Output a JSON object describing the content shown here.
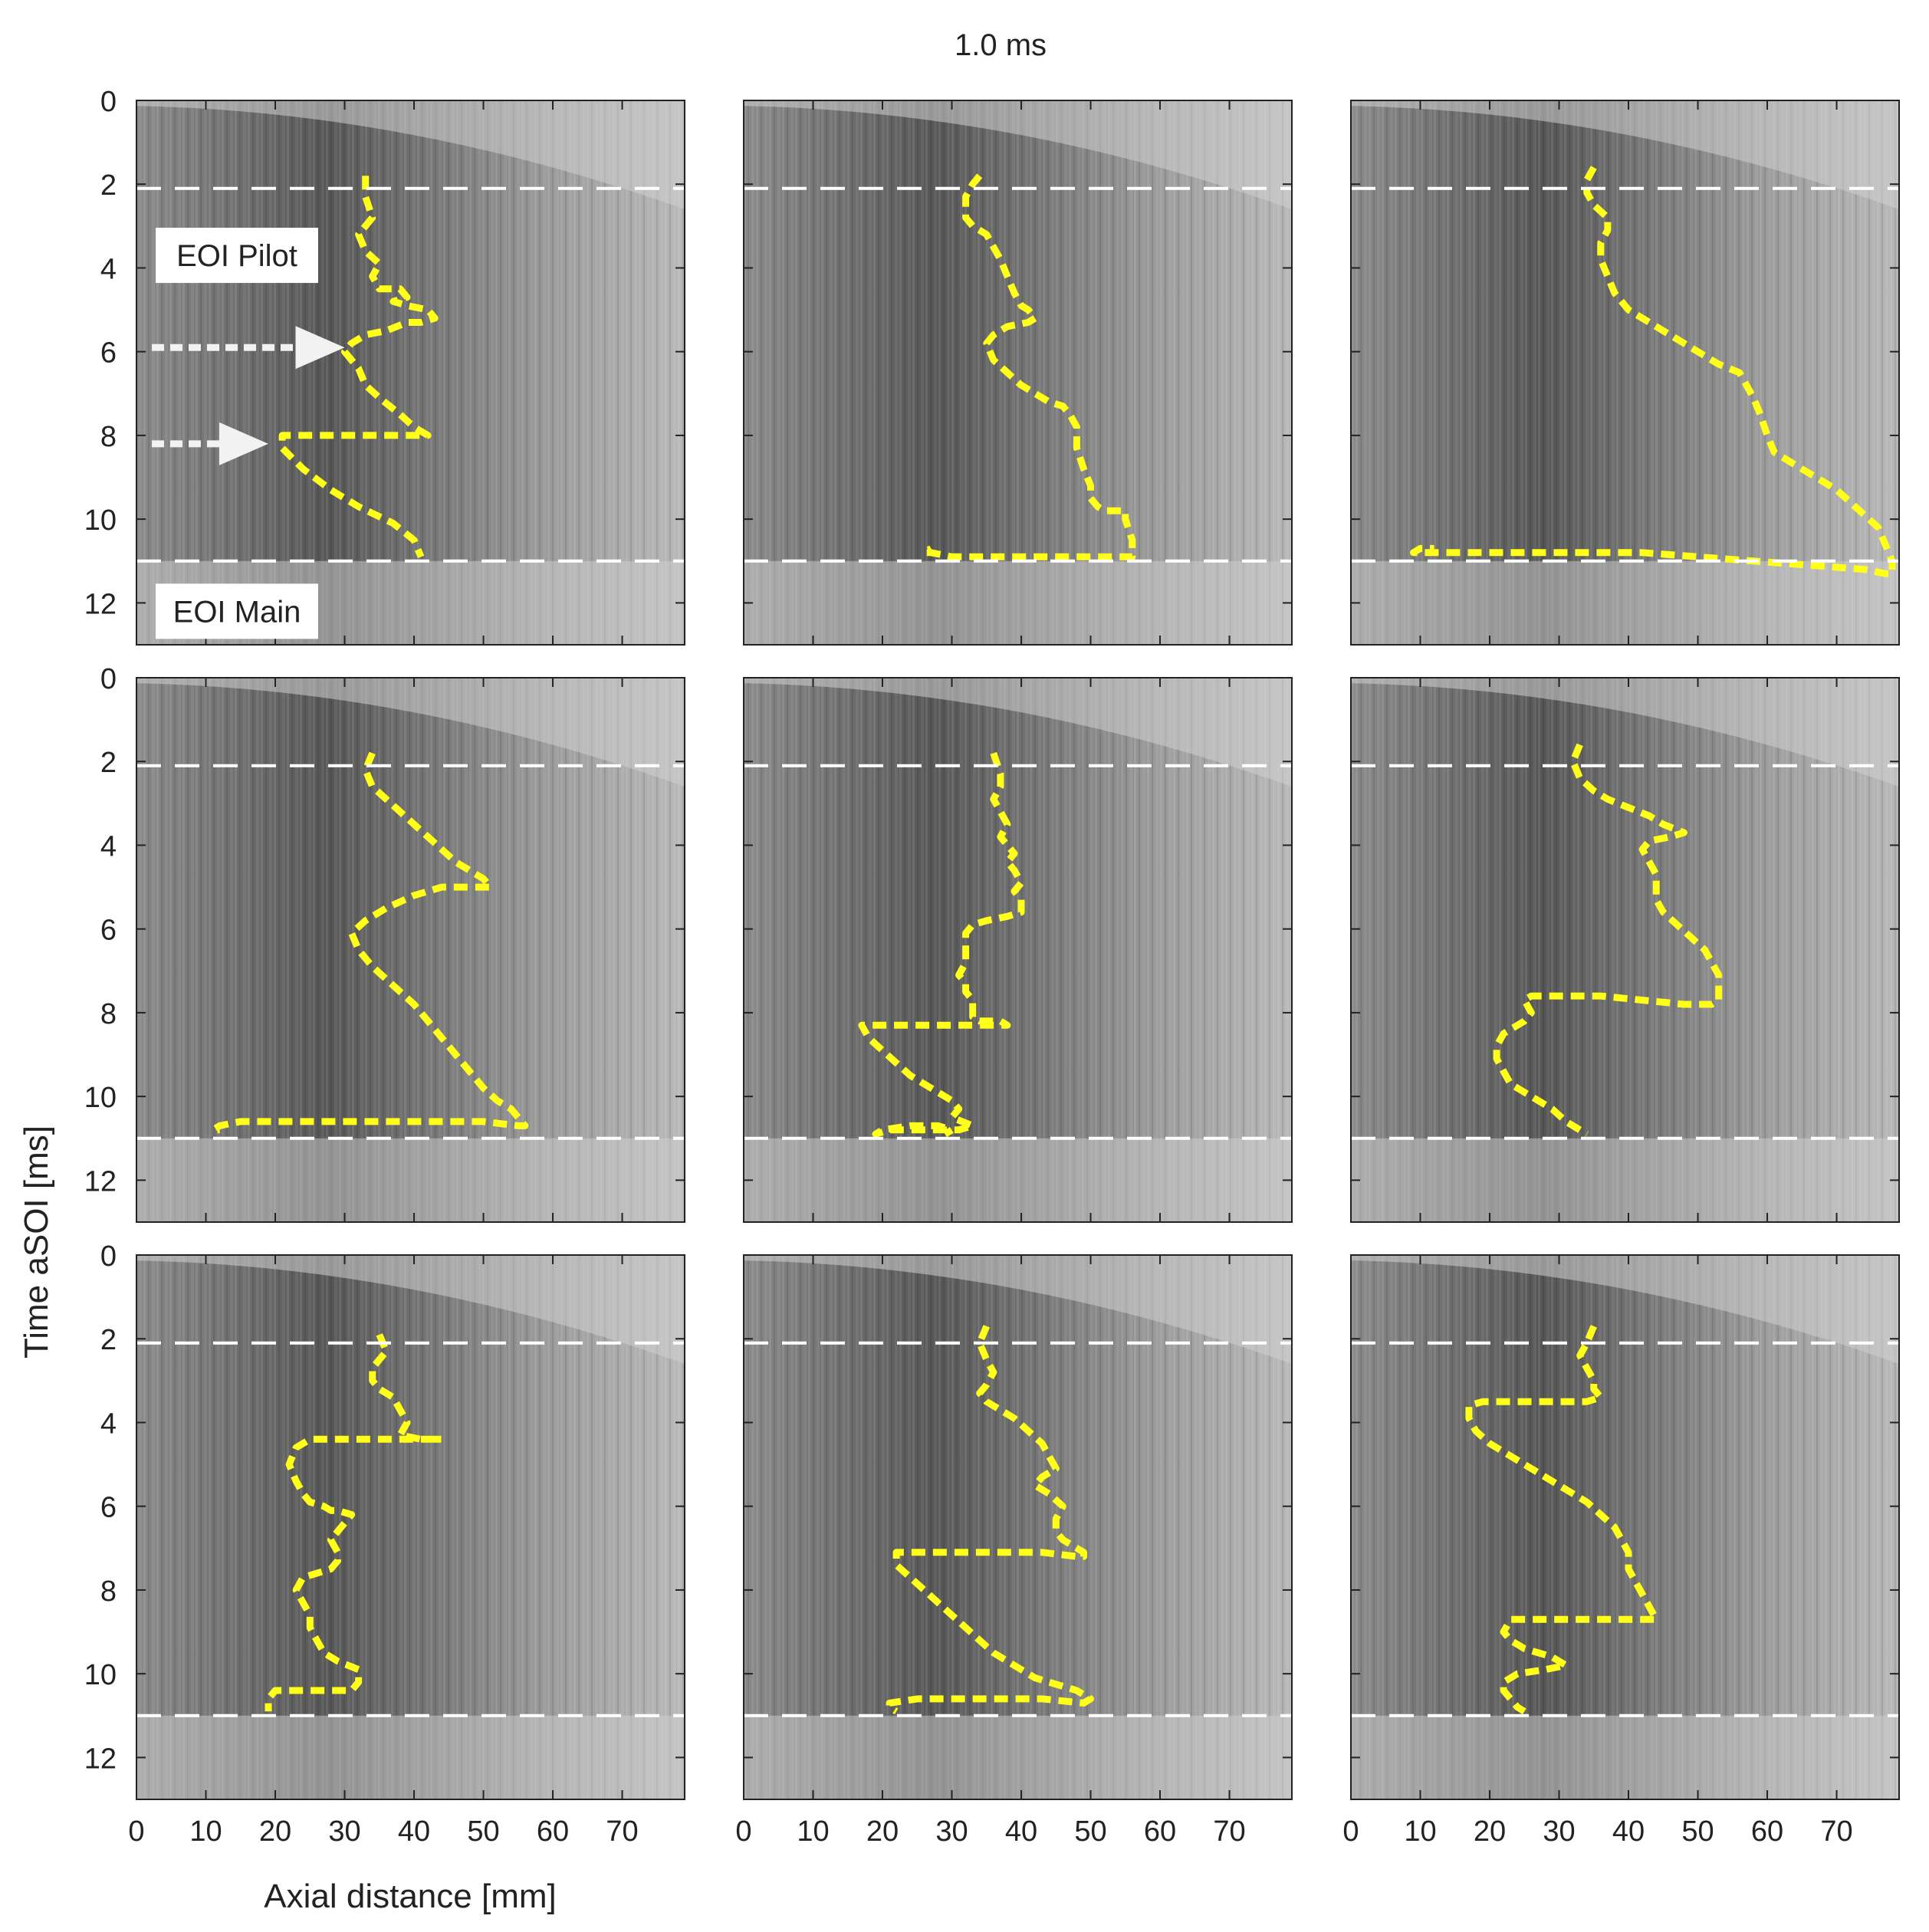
{
  "figure": {
    "title": "1.0 ms",
    "ylabel": "Time aSOI [ms]",
    "xlabel": "Axial distance [mm]"
  },
  "annotations": {
    "eoi_pilot_label": "EOI Pilot",
    "eoi_main_label": "EOI Main",
    "eoi_pilot_time": 2.1,
    "eoi_main_time": 11.0,
    "arrow_times": [
      5.9,
      8.2
    ]
  },
  "axes": {
    "xlim": [
      0,
      79
    ],
    "ylim": [
      13,
      0
    ],
    "xticks": [
      0,
      10,
      20,
      30,
      40,
      50,
      60,
      70
    ],
    "yticks": [
      0,
      2,
      4,
      6,
      8,
      10,
      12
    ]
  },
  "chart_data": [
    {
      "type": "line",
      "panel": "row1-col1",
      "series": [
        {
          "x": [
            33,
            33,
            34,
            32,
            33,
            35,
            34,
            35,
            38,
            39,
            37,
            39,
            42,
            43,
            41,
            39,
            36,
            33,
            31,
            30,
            32,
            33,
            35,
            38,
            40,
            42,
            40,
            36,
            33,
            30,
            27,
            24,
            21,
            21,
            24,
            28,
            32,
            37,
            40,
            41
          ],
          "y": [
            1.8,
            2.3,
            2.8,
            3.2,
            3.6,
            3.9,
            4.2,
            4.5,
            4.5,
            4.7,
            4.8,
            4.9,
            5.0,
            5.2,
            5.3,
            5.3,
            5.5,
            5.6,
            5.8,
            6.0,
            6.4,
            6.8,
            7.1,
            7.5,
            7.8,
            8.0,
            8.0,
            8.0,
            8.0,
            8.0,
            8.0,
            8.0,
            8.0,
            8.3,
            8.8,
            9.3,
            9.7,
            10.1,
            10.5,
            10.9
          ]
        }
      ]
    },
    {
      "type": "line",
      "panel": "row1-col2",
      "series": [
        {
          "x": [
            34,
            33,
            32,
            32,
            33,
            35,
            36,
            37,
            38,
            39,
            40,
            41,
            42,
            41,
            38,
            36,
            35,
            36,
            38,
            40,
            42,
            44,
            46,
            47,
            48,
            48,
            49,
            50,
            50,
            51,
            52,
            53,
            54,
            55,
            55,
            56,
            56,
            55,
            50,
            45,
            40,
            35,
            30,
            27,
            26,
            27
          ],
          "y": [
            1.8,
            2.0,
            2.3,
            2.8,
            3.0,
            3.2,
            3.5,
            3.8,
            4.2,
            4.6,
            4.9,
            5.0,
            5.2,
            5.3,
            5.4,
            5.6,
            5.8,
            6.2,
            6.5,
            6.8,
            7.0,
            7.2,
            7.3,
            7.5,
            7.8,
            8.3,
            8.8,
            9.2,
            9.5,
            9.7,
            9.8,
            9.8,
            9.8,
            9.8,
            10.0,
            10.5,
            10.9,
            10.9,
            10.9,
            10.9,
            10.9,
            10.9,
            10.9,
            10.8,
            10.8,
            10.7
          ]
        }
      ]
    },
    {
      "type": "line",
      "panel": "row1-col3",
      "series": [
        {
          "x": [
            35,
            34,
            34,
            35,
            37,
            37,
            36,
            36,
            37,
            38,
            40,
            43,
            46,
            50,
            53,
            56,
            57,
            58,
            59,
            60,
            61,
            64,
            67,
            70,
            72,
            74,
            76,
            77,
            78,
            78,
            77,
            74,
            66,
            58,
            50,
            42,
            34,
            26,
            18,
            12,
            9,
            10,
            12
          ],
          "y": [
            1.6,
            1.9,
            2.2,
            2.5,
            2.8,
            3.1,
            3.4,
            3.8,
            4.2,
            4.6,
            5.0,
            5.3,
            5.6,
            6.0,
            6.3,
            6.5,
            6.8,
            7.1,
            7.5,
            8.0,
            8.4,
            8.7,
            9.0,
            9.3,
            9.6,
            9.9,
            10.2,
            10.6,
            11.0,
            11.3,
            11.3,
            11.2,
            11.1,
            11.0,
            10.9,
            10.8,
            10.8,
            10.8,
            10.8,
            10.8,
            10.8,
            10.7,
            10.7
          ]
        }
      ]
    },
    {
      "type": "line",
      "panel": "row2-col1",
      "series": [
        {
          "x": [
            34,
            33,
            34,
            36,
            38,
            40,
            42,
            44,
            46,
            48,
            50,
            51,
            48,
            44,
            40,
            36,
            33,
            31,
            32,
            34,
            36,
            38,
            40,
            42,
            44,
            46,
            48,
            50,
            52,
            54,
            55,
            56,
            55,
            50,
            45,
            40,
            35,
            30,
            25,
            20,
            15,
            12,
            11,
            12
          ],
          "y": [
            1.8,
            2.2,
            2.6,
            2.9,
            3.2,
            3.5,
            3.8,
            4.1,
            4.4,
            4.6,
            4.8,
            5.0,
            5.0,
            5.0,
            5.2,
            5.5,
            5.8,
            6.1,
            6.5,
            6.9,
            7.2,
            7.5,
            7.8,
            8.2,
            8.6,
            9.0,
            9.4,
            9.8,
            10.1,
            10.3,
            10.5,
            10.7,
            10.7,
            10.6,
            10.6,
            10.6,
            10.6,
            10.6,
            10.6,
            10.6,
            10.6,
            10.7,
            10.8,
            10.8
          ]
        }
      ]
    },
    {
      "type": "line",
      "panel": "row2-col2",
      "series": [
        {
          "x": [
            36,
            37,
            37,
            36,
            37,
            38,
            37,
            38,
            39,
            38,
            39,
            40,
            39,
            40,
            40,
            38,
            35,
            33,
            32,
            32,
            32,
            31,
            32,
            32,
            33,
            33,
            33,
            34,
            36,
            37,
            38,
            38,
            34,
            28,
            22,
            17,
            18,
            20,
            22,
            24,
            26,
            28,
            30,
            31,
            30,
            33,
            31,
            28,
            24,
            21,
            19,
            20,
            24,
            28,
            30,
            29
          ],
          "y": [
            1.8,
            2.3,
            2.6,
            2.9,
            3.2,
            3.5,
            3.8,
            4.0,
            4.2,
            4.4,
            4.6,
            4.9,
            5.1,
            5.3,
            5.6,
            5.7,
            5.8,
            5.9,
            6.1,
            6.4,
            6.8,
            7.1,
            7.3,
            7.5,
            7.7,
            7.9,
            8.1,
            8.2,
            8.2,
            8.2,
            8.3,
            8.3,
            8.3,
            8.3,
            8.3,
            8.3,
            8.6,
            8.9,
            9.2,
            9.5,
            9.7,
            9.9,
            10.1,
            10.3,
            10.5,
            10.7,
            10.8,
            10.8,
            10.8,
            10.8,
            10.9,
            10.8,
            10.7,
            10.7,
            10.8,
            10.9
          ]
        }
      ]
    },
    {
      "type": "line",
      "panel": "row2-col3",
      "series": [
        {
          "x": [
            33,
            32,
            33,
            35,
            37,
            40,
            43,
            45,
            48,
            46,
            43,
            42,
            43,
            44,
            44,
            44,
            45,
            47,
            49,
            51,
            52,
            53,
            53,
            53,
            52,
            48,
            42,
            36,
            30,
            26,
            25,
            26,
            25,
            22,
            21,
            21,
            22,
            23,
            25,
            27,
            29,
            31,
            34
          ],
          "y": [
            1.6,
            2.0,
            2.4,
            2.7,
            2.9,
            3.1,
            3.3,
            3.5,
            3.7,
            3.8,
            3.9,
            4.1,
            4.4,
            4.7,
            5.0,
            5.3,
            5.6,
            5.9,
            6.2,
            6.5,
            6.8,
            7.1,
            7.4,
            7.7,
            7.8,
            7.8,
            7.7,
            7.6,
            7.6,
            7.6,
            7.7,
            8.0,
            8.2,
            8.5,
            8.8,
            9.1,
            9.4,
            9.7,
            9.9,
            10.1,
            10.3,
            10.6,
            10.9
          ]
        }
      ]
    },
    {
      "type": "line",
      "panel": "row3-col1",
      "series": [
        {
          "x": [
            35,
            36,
            34,
            34,
            35,
            37,
            38,
            39,
            38,
            41,
            44,
            40,
            35,
            30,
            25,
            23,
            22,
            23,
            24,
            25,
            27,
            28,
            29,
            31,
            30,
            29,
            28,
            29,
            29,
            28,
            26,
            24,
            23,
            24,
            25,
            25,
            26,
            27,
            29,
            32,
            32,
            31,
            28,
            24,
            20,
            19,
            19
          ],
          "y": [
            1.9,
            2.3,
            2.7,
            3.0,
            3.2,
            3.4,
            3.7,
            4.0,
            4.3,
            4.4,
            4.4,
            4.4,
            4.4,
            4.4,
            4.4,
            4.6,
            5.0,
            5.4,
            5.7,
            5.9,
            6.0,
            6.1,
            6.1,
            6.2,
            6.4,
            6.6,
            6.8,
            7.1,
            7.3,
            7.5,
            7.6,
            7.7,
            8.0,
            8.3,
            8.6,
            8.9,
            9.2,
            9.5,
            9.7,
            9.9,
            10.2,
            10.4,
            10.4,
            10.4,
            10.4,
            10.6,
            10.9
          ]
        }
      ]
    },
    {
      "type": "line",
      "panel": "row3-col2",
      "series": [
        {
          "x": [
            35,
            34,
            35,
            36,
            35,
            34,
            35,
            37,
            39,
            41,
            43,
            44,
            45,
            43,
            42,
            44,
            46,
            45,
            45,
            46,
            47,
            48,
            49,
            49,
            48,
            43,
            37,
            31,
            25,
            22,
            22,
            24,
            26,
            28,
            30,
            32,
            34,
            36,
            38,
            40,
            42,
            44,
            46,
            48,
            49,
            50,
            49,
            43,
            37,
            31,
            25,
            21,
            21,
            22
          ],
          "y": [
            1.7,
            2.1,
            2.5,
            2.8,
            3.1,
            3.3,
            3.5,
            3.7,
            3.9,
            4.2,
            4.5,
            4.8,
            5.1,
            5.3,
            5.5,
            5.7,
            6.0,
            6.3,
            6.6,
            6.8,
            6.9,
            7.0,
            7.1,
            7.2,
            7.2,
            7.1,
            7.1,
            7.1,
            7.1,
            7.1,
            7.4,
            7.7,
            8.0,
            8.3,
            8.6,
            8.9,
            9.2,
            9.5,
            9.7,
            9.9,
            10.1,
            10.2,
            10.3,
            10.4,
            10.5,
            10.6,
            10.7,
            10.6,
            10.6,
            10.6,
            10.6,
            10.7,
            10.8,
            10.9
          ]
        }
      ]
    },
    {
      "type": "line",
      "panel": "row3-col3",
      "series": [
        {
          "x": [
            35,
            34,
            33,
            34,
            35,
            35,
            36,
            34,
            30,
            26,
            22,
            19,
            17,
            17,
            18,
            20,
            22,
            24,
            26,
            28,
            30,
            32,
            34,
            36,
            38,
            39,
            40,
            40,
            41,
            42,
            43,
            44,
            42,
            37,
            31,
            26,
            23,
            22,
            23,
            25,
            27,
            29,
            30,
            31,
            28,
            24,
            22,
            22,
            23,
            24,
            25
          ],
          "y": [
            1.7,
            2.1,
            2.4,
            2.7,
            3.0,
            3.2,
            3.4,
            3.5,
            3.5,
            3.5,
            3.5,
            3.5,
            3.6,
            3.9,
            4.2,
            4.5,
            4.7,
            4.9,
            5.1,
            5.3,
            5.5,
            5.7,
            5.9,
            6.2,
            6.5,
            6.8,
            7.1,
            7.5,
            7.8,
            8.1,
            8.4,
            8.7,
            8.7,
            8.7,
            8.7,
            8.7,
            8.7,
            9.0,
            9.2,
            9.4,
            9.5,
            9.6,
            9.7,
            9.8,
            9.9,
            10.0,
            10.2,
            10.4,
            10.6,
            10.8,
            10.9
          ]
        }
      ]
    }
  ]
}
